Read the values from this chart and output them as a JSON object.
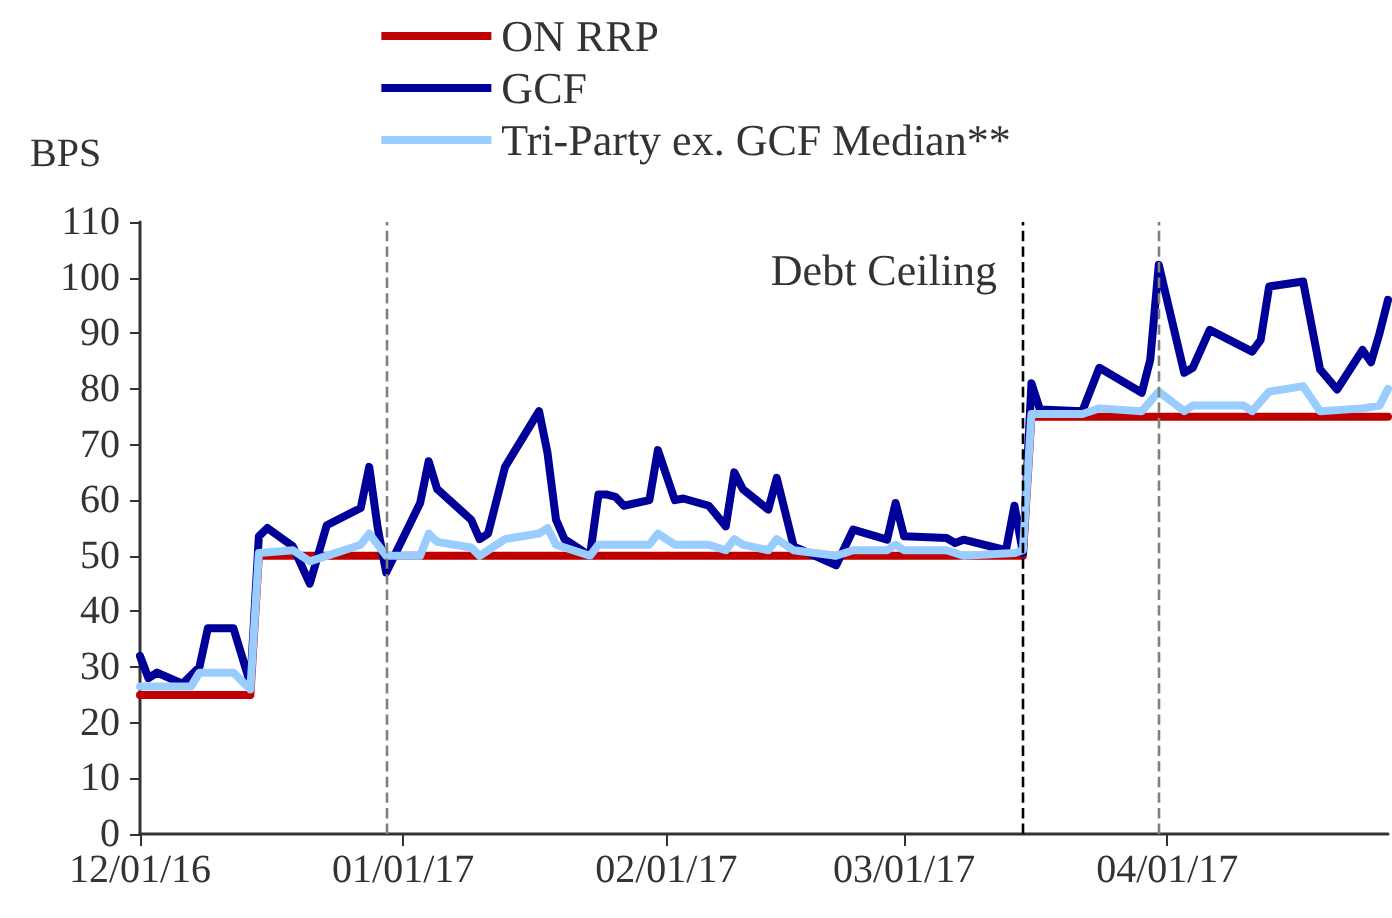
{
  "chart_data": {
    "type": "line",
    "ylabel": "BPS",
    "legend": "top",
    "grid": false,
    "marker": "none",
    "line_style": "solid",
    "xlim": [
      "2016-12-01",
      "2017-04-27"
    ],
    "xticks": [
      {
        "value": "2016-12-01",
        "label": "12/01/16"
      },
      {
        "value": "2017-01-01",
        "label": "01/01/17"
      },
      {
        "value": "2017-02-01",
        "label": "02/01/17"
      },
      {
        "value": "2017-03-01",
        "label": "03/01/17"
      },
      {
        "value": "2017-04-01",
        "label": "04/01/17"
      }
    ],
    "ylim": [
      0,
      110
    ],
    "yticks": [
      0,
      10,
      20,
      30,
      40,
      50,
      60,
      70,
      80,
      90,
      100,
      110
    ],
    "series": [
      {
        "name": "ON RRP",
        "color": "#c00000",
        "x": [
          "2016-12-01",
          "2016-12-14",
          "2016-12-15",
          "2017-03-15",
          "2017-03-16",
          "2017-04-27"
        ],
        "values": [
          25,
          25,
          50,
          50,
          75,
          75
        ]
      },
      {
        "name": "GCF",
        "color": "#000099",
        "x": [
          "2016-12-01",
          "2016-12-02",
          "2016-12-03",
          "2016-12-06",
          "2016-12-08",
          "2016-12-09",
          "2016-12-12",
          "2016-12-14",
          "2016-12-15",
          "2016-12-16",
          "2016-12-19",
          "2016-12-21",
          "2016-12-23",
          "2016-12-27",
          "2016-12-28",
          "2016-12-29",
          "2016-12-30",
          "2017-01-03",
          "2017-01-04",
          "2017-01-05",
          "2017-01-09",
          "2017-01-10",
          "2017-01-11",
          "2017-01-13",
          "2017-01-17",
          "2017-01-18",
          "2017-01-19",
          "2017-01-20",
          "2017-01-23",
          "2017-01-24",
          "2017-01-25",
          "2017-01-26",
          "2017-01-27",
          "2017-01-30",
          "2017-01-31",
          "2017-02-02",
          "2017-02-03",
          "2017-02-06",
          "2017-02-08",
          "2017-02-09",
          "2017-02-10",
          "2017-02-13",
          "2017-02-14",
          "2017-02-16",
          "2017-02-21",
          "2017-02-23",
          "2017-02-27",
          "2017-02-28",
          "2017-03-01",
          "2017-03-06",
          "2017-03-07",
          "2017-03-08",
          "2017-03-13",
          "2017-03-14",
          "2017-03-15",
          "2017-03-16",
          "2017-03-17",
          "2017-03-22",
          "2017-03-24",
          "2017-03-29",
          "2017-03-30",
          "2017-03-31",
          "2017-04-03",
          "2017-04-04",
          "2017-04-06",
          "2017-04-11",
          "2017-04-12",
          "2017-04-13",
          "2017-04-17",
          "2017-04-19",
          "2017-04-21",
          "2017-04-24",
          "2017-04-25",
          "2017-04-26",
          "2017-04-27"
        ],
        "values": [
          32,
          28,
          29,
          27,
          30,
          37,
          37,
          27,
          53.5,
          55,
          51.7,
          45,
          55.5,
          58.6,
          66,
          55,
          47,
          59.5,
          67,
          62,
          56.5,
          53,
          54,
          66,
          76,
          68.5,
          56.5,
          53,
          50,
          61,
          61,
          60.6,
          59,
          60,
          69,
          60,
          60.3,
          59,
          55.3,
          65,
          62,
          58.3,
          64,
          51.7,
          48.3,
          54.7,
          52.9,
          59.5,
          53.5,
          53.2,
          52.3,
          52.9,
          51,
          59,
          50.5,
          81,
          76.3,
          76,
          83.8,
          79.3,
          85.3,
          102.3,
          82.9,
          83.8,
          90.6,
          86.7,
          88.8,
          98.4,
          99.3,
          83.5,
          79.9,
          87,
          84.8,
          90,
          96
        ]
      },
      {
        "name": "Tri-Party ex. GCF Median**",
        "color": "#99ccff",
        "x": [
          "2016-12-01",
          "2016-12-07",
          "2016-12-08",
          "2016-12-12",
          "2016-12-14",
          "2016-12-15",
          "2016-12-19",
          "2016-12-21",
          "2016-12-27",
          "2016-12-28",
          "2016-12-30",
          "2017-01-03",
          "2017-01-04",
          "2017-01-05",
          "2017-01-09",
          "2017-01-10",
          "2017-01-13",
          "2017-01-17",
          "2017-01-18",
          "2017-01-19",
          "2017-01-23",
          "2017-01-24",
          "2017-01-30",
          "2017-01-31",
          "2017-02-02",
          "2017-02-06",
          "2017-02-08",
          "2017-02-09",
          "2017-02-10",
          "2017-02-13",
          "2017-02-14",
          "2017-02-16",
          "2017-02-21",
          "2017-02-23",
          "2017-02-27",
          "2017-02-28",
          "2017-03-01",
          "2017-03-06",
          "2017-03-08",
          "2017-03-14",
          "2017-03-15",
          "2017-03-16",
          "2017-03-22",
          "2017-03-24",
          "2017-03-29",
          "2017-03-31",
          "2017-04-03",
          "2017-04-04",
          "2017-04-10",
          "2017-04-11",
          "2017-04-13",
          "2017-04-17",
          "2017-04-19",
          "2017-04-24",
          "2017-04-26",
          "2017-04-27"
        ],
        "values": [
          26.5,
          26.5,
          29,
          29,
          26,
          50.5,
          51,
          49,
          52,
          54,
          50,
          50,
          54,
          52.5,
          51.5,
          50,
          53,
          54,
          55,
          52,
          50,
          52,
          52,
          54,
          52,
          52,
          51,
          53,
          52,
          51,
          53,
          51,
          50,
          51,
          51,
          52,
          51,
          51,
          50,
          50.5,
          51,
          75.5,
          75.5,
          76.5,
          76,
          79.5,
          76,
          77,
          77,
          76,
          79.5,
          80.5,
          76,
          76.5,
          77,
          80
        ]
      }
    ],
    "ref_lines": [
      {
        "axis": "x",
        "value": "2016-12-30",
        "color": "#808080",
        "line_style": "dashed"
      },
      {
        "axis": "x",
        "value": "2017-03-15",
        "label": "Debt Ceiling",
        "color": "#000000",
        "line_style": "dashed"
      },
      {
        "axis": "x",
        "value": "2017-03-31",
        "color": "#808080",
        "line_style": "dashed"
      }
    ]
  }
}
